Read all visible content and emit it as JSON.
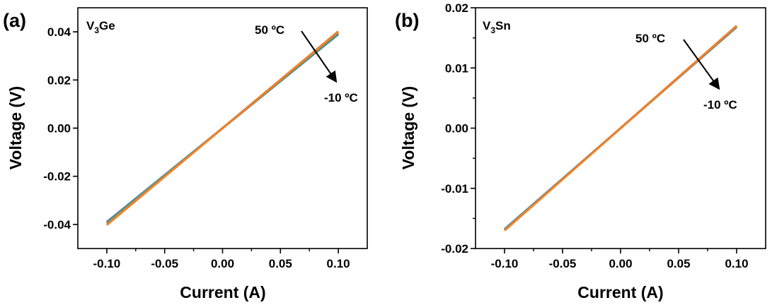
{
  "chart_data": [
    {
      "type": "line",
      "panel_label": "(a)",
      "material": {
        "base": "V",
        "sub": "3",
        "rest": "Ge"
      },
      "xlabel": "Current (A)",
      "ylabel": "Voltage (V)",
      "xlim": [
        -0.125,
        0.125
      ],
      "ylim": [
        -0.05,
        0.05
      ],
      "xticks": [
        -0.1,
        -0.05,
        0.0,
        0.05,
        0.1
      ],
      "xtick_labels": [
        "-0.10",
        "-0.05",
        "0.00",
        "0.05",
        "0.10"
      ],
      "yticks": [
        -0.04,
        -0.02,
        0.0,
        0.02,
        0.04
      ],
      "ytick_labels": [
        "-0.04",
        "-0.02",
        "0.00",
        "0.02",
        "0.04"
      ],
      "grid": false,
      "series": [
        {
          "color": "#4a7fb0",
          "x": [
            -0.1,
            0.1
          ],
          "y": [
            -0.039,
            0.039
          ]
        },
        {
          "color": "#5a9a70",
          "x": [
            -0.1,
            0.1
          ],
          "y": [
            -0.0395,
            0.0395
          ]
        },
        {
          "color": "#f07f2a",
          "x": [
            -0.1,
            0.1
          ],
          "y": [
            -0.0402,
            0.0402
          ]
        }
      ],
      "annotation_high": "50 ºC",
      "annotation_low": "-10 ºC"
    },
    {
      "type": "line",
      "panel_label": "(b)",
      "material": {
        "base": "V",
        "sub": "3",
        "rest": "Sn"
      },
      "xlabel": "Current (A)",
      "ylabel": "Voltage (V)",
      "xlim": [
        -0.125,
        0.125
      ],
      "ylim": [
        -0.02,
        0.02
      ],
      "xticks": [
        -0.1,
        -0.05,
        0.0,
        0.05,
        0.1
      ],
      "xtick_labels": [
        "-0.10",
        "-0.05",
        "0.00",
        "0.05",
        "0.10"
      ],
      "yticks": [
        -0.02,
        -0.01,
        0.0,
        0.01,
        0.02
      ],
      "ytick_labels": [
        "-0.02",
        "-0.01",
        "0.00",
        "0.01",
        "0.02"
      ],
      "grid": false,
      "series": [
        {
          "color": "#4a7fb0",
          "x": [
            -0.1,
            0.1
          ],
          "y": [
            -0.0168,
            0.0168
          ]
        },
        {
          "color": "#5a9a70",
          "x": [
            -0.1,
            0.1
          ],
          "y": [
            -0.0169,
            0.0169
          ]
        },
        {
          "color": "#f07f2a",
          "x": [
            -0.1,
            0.1
          ],
          "y": [
            -0.017,
            0.017
          ]
        }
      ],
      "annotation_high": "50 ºC",
      "annotation_low": "-10 ºC"
    }
  ]
}
